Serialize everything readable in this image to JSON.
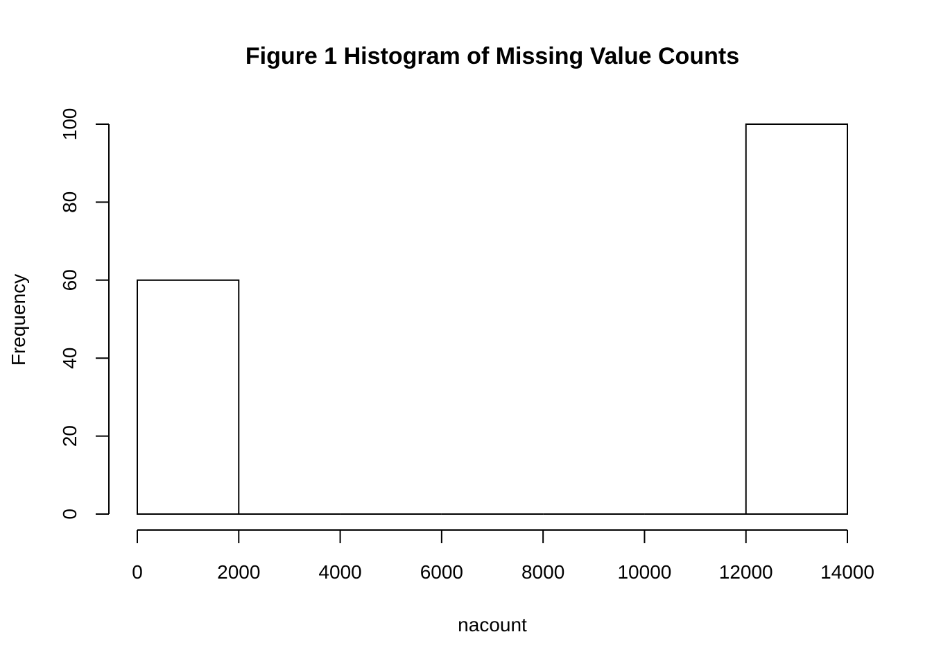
{
  "chart_data": {
    "type": "bar",
    "title": "Figure 1 Histogram of Missing Value Counts",
    "xlabel": "nacount",
    "ylabel": "Frequency",
    "xlim": [
      0,
      14000
    ],
    "ylim": [
      0,
      100
    ],
    "bins": [
      {
        "start": 0,
        "end": 2000,
        "count": 60
      },
      {
        "start": 2000,
        "end": 4000,
        "count": 0
      },
      {
        "start": 4000,
        "end": 6000,
        "count": 0
      },
      {
        "start": 6000,
        "end": 8000,
        "count": 0
      },
      {
        "start": 8000,
        "end": 10000,
        "count": 0
      },
      {
        "start": 10000,
        "end": 12000,
        "count": 0
      },
      {
        "start": 12000,
        "end": 14000,
        "count": 100
      }
    ],
    "x_ticks": [
      "0",
      "2000",
      "4000",
      "6000",
      "8000",
      "10000",
      "12000",
      "14000"
    ],
    "y_ticks": [
      "0",
      "20",
      "40",
      "60",
      "80",
      "100"
    ],
    "grid": false,
    "legend": "none",
    "colors": {
      "bar_fill": "#ffffff",
      "bar_stroke": "#000000",
      "background": "#ffffff"
    }
  }
}
